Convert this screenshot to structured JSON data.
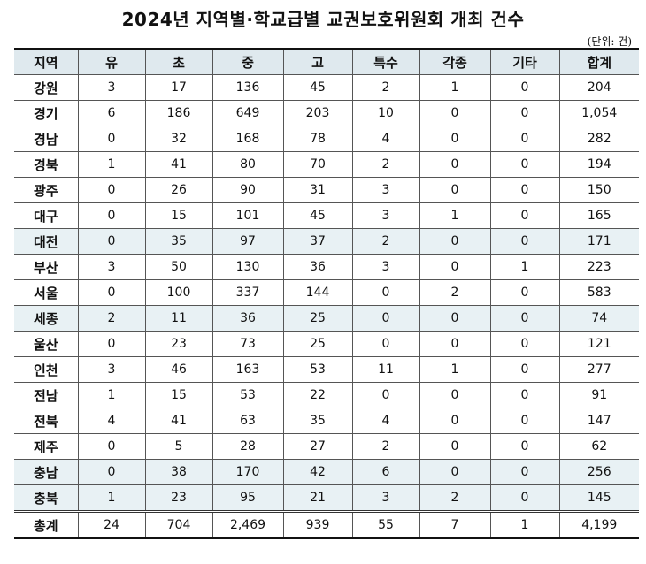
{
  "title": "2024년 지역별·학교급별 교권보호위원회 개최 건수",
  "unit": "(단위: 건)",
  "headers": [
    "지역",
    "유",
    "초",
    "중",
    "고",
    "특수",
    "각종",
    "기타",
    "합계"
  ],
  "rows": [
    {
      "region": "강원",
      "values": [
        "3",
        "17",
        "136",
        "45",
        "2",
        "1",
        "0",
        "204"
      ],
      "highlight": false
    },
    {
      "region": "경기",
      "values": [
        "6",
        "186",
        "649",
        "203",
        "10",
        "0",
        "0",
        "1,054"
      ],
      "highlight": false
    },
    {
      "region": "경남",
      "values": [
        "0",
        "32",
        "168",
        "78",
        "4",
        "0",
        "0",
        "282"
      ],
      "highlight": false
    },
    {
      "region": "경북",
      "values": [
        "1",
        "41",
        "80",
        "70",
        "2",
        "0",
        "0",
        "194"
      ],
      "highlight": false
    },
    {
      "region": "광주",
      "values": [
        "0",
        "26",
        "90",
        "31",
        "3",
        "0",
        "0",
        "150"
      ],
      "highlight": false
    },
    {
      "region": "대구",
      "values": [
        "0",
        "15",
        "101",
        "45",
        "3",
        "1",
        "0",
        "165"
      ],
      "highlight": false
    },
    {
      "region": "대전",
      "values": [
        "0",
        "35",
        "97",
        "37",
        "2",
        "0",
        "0",
        "171"
      ],
      "highlight": true
    },
    {
      "region": "부산",
      "values": [
        "3",
        "50",
        "130",
        "36",
        "3",
        "0",
        "1",
        "223"
      ],
      "highlight": false
    },
    {
      "region": "서울",
      "values": [
        "0",
        "100",
        "337",
        "144",
        "0",
        "2",
        "0",
        "583"
      ],
      "highlight": false
    },
    {
      "region": "세종",
      "values": [
        "2",
        "11",
        "36",
        "25",
        "0",
        "0",
        "0",
        "74"
      ],
      "highlight": true
    },
    {
      "region": "울산",
      "values": [
        "0",
        "23",
        "73",
        "25",
        "0",
        "0",
        "0",
        "121"
      ],
      "highlight": false
    },
    {
      "region": "인천",
      "values": [
        "3",
        "46",
        "163",
        "53",
        "11",
        "1",
        "0",
        "277"
      ],
      "highlight": false
    },
    {
      "region": "전남",
      "values": [
        "1",
        "15",
        "53",
        "22",
        "0",
        "0",
        "0",
        "91"
      ],
      "highlight": false
    },
    {
      "region": "전북",
      "values": [
        "4",
        "41",
        "63",
        "35",
        "4",
        "0",
        "0",
        "147"
      ],
      "highlight": false
    },
    {
      "region": "제주",
      "values": [
        "0",
        "5",
        "28",
        "27",
        "2",
        "0",
        "0",
        "62"
      ],
      "highlight": false
    },
    {
      "region": "충남",
      "values": [
        "0",
        "38",
        "170",
        "42",
        "6",
        "0",
        "0",
        "256"
      ],
      "highlight": true
    },
    {
      "region": "충북",
      "values": [
        "1",
        "23",
        "95",
        "21",
        "3",
        "2",
        "0",
        "145"
      ],
      "highlight": true
    }
  ],
  "total": {
    "region": "총계",
    "values": [
      "24",
      "704",
      "2,469",
      "939",
      "55",
      "7",
      "1",
      "4,199"
    ]
  }
}
